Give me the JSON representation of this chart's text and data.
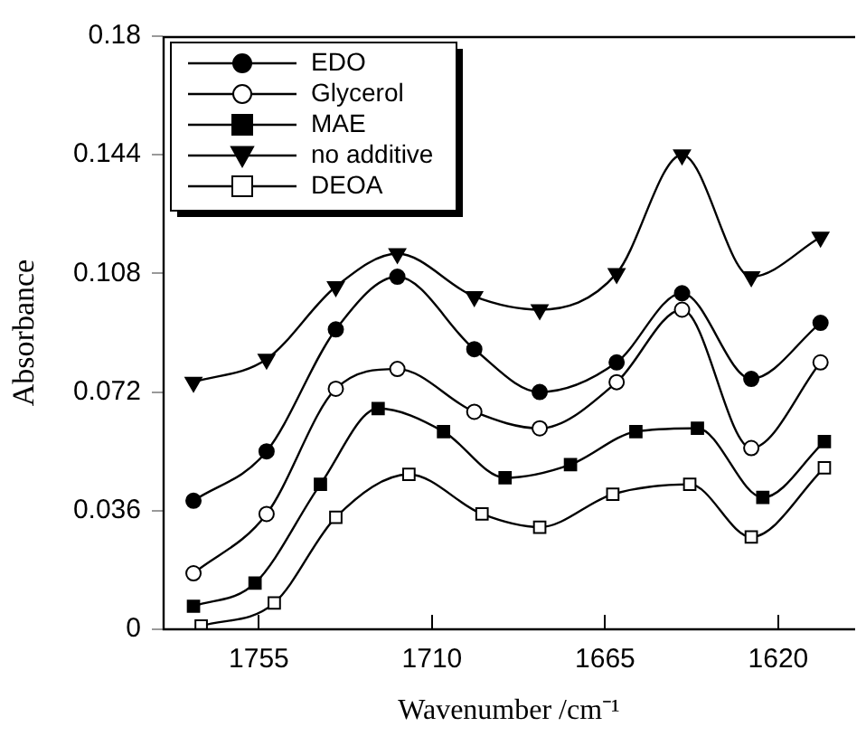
{
  "chart_data": {
    "type": "line",
    "xlabel": "Wavenumber /cm⁻¹",
    "ylabel": "Absorbance",
    "xlim": [
      1780,
      1600
    ],
    "ylim": [
      0,
      0.18
    ],
    "xticks": [
      1755,
      1710,
      1665,
      1620
    ],
    "yticks": [
      0,
      0.036,
      0.072,
      0.108,
      0.144,
      0.18
    ],
    "grid": false,
    "legend": "top left",
    "line_style": "solid",
    "series": [
      {
        "name": "EDO",
        "color": "#000000",
        "marker": "circle",
        "x": [
          1772,
          1753,
          1735,
          1719,
          1699,
          1682,
          1662,
          1645,
          1627,
          1609
        ],
        "values": [
          0.039,
          0.054,
          0.091,
          0.107,
          0.085,
          0.072,
          0.081,
          0.102,
          0.076,
          0.093
        ]
      },
      {
        "name": "Glycerol",
        "color": "#000000",
        "marker": "circle-open",
        "x": [
          1772,
          1753,
          1735,
          1719,
          1699,
          1682,
          1662,
          1645,
          1627,
          1609
        ],
        "values": [
          0.017,
          0.035,
          0.073,
          0.079,
          0.066,
          0.061,
          0.075,
          0.097,
          0.055,
          0.081
        ]
      },
      {
        "name": "MAE",
        "color": "#000000",
        "marker": "square",
        "x": [
          1772,
          1756,
          1739,
          1724,
          1707,
          1691,
          1674,
          1657,
          1641,
          1624,
          1608
        ],
        "values": [
          0.007,
          0.014,
          0.044,
          0.067,
          0.06,
          0.046,
          0.05,
          0.06,
          0.061,
          0.04,
          0.057
        ]
      },
      {
        "name": "no additive",
        "color": "#000000",
        "marker": "triangle-down",
        "x": [
          1772,
          1753,
          1735,
          1719,
          1699,
          1682,
          1662,
          1645,
          1627,
          1609
        ],
        "values": [
          0.075,
          0.082,
          0.104,
          0.114,
          0.101,
          0.097,
          0.108,
          0.144,
          0.107,
          0.119
        ]
      },
      {
        "name": "DEOA",
        "color": "#000000",
        "marker": "square-open",
        "x": [
          1770,
          1751,
          1735,
          1716,
          1697,
          1682,
          1663,
          1643,
          1627,
          1608
        ],
        "values": [
          0.001,
          0.008,
          0.034,
          0.047,
          0.035,
          0.031,
          0.041,
          0.044,
          0.028,
          0.049
        ]
      }
    ]
  }
}
